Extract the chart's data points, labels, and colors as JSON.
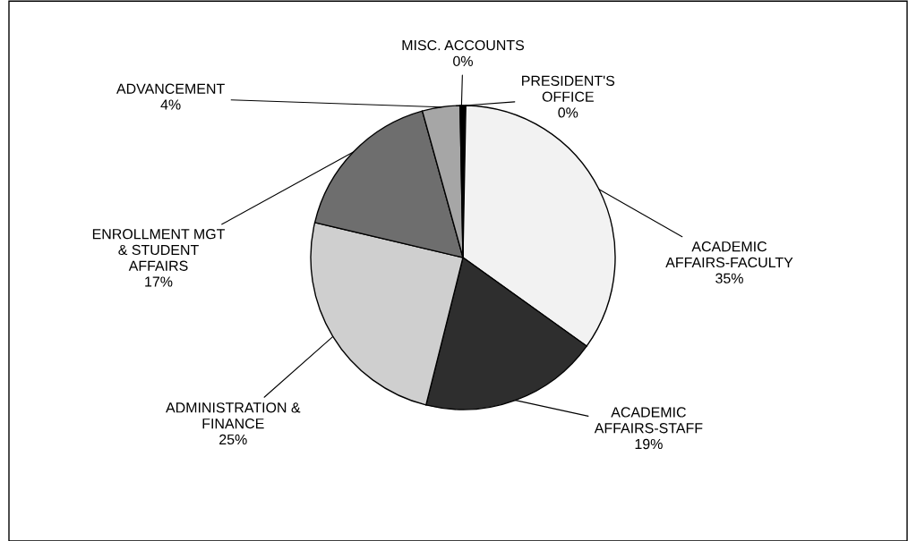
{
  "chart_data": {
    "type": "pie",
    "categories": [
      "PRESIDENT'S OFFICE",
      "ACADEMIC AFFAIRS-FACULTY",
      "ACADEMIC AFFAIRS-STAFF",
      "ADMINISTRATION & FINANCE",
      "ENROLLMENT MGT & STUDENT AFFAIRS",
      "ADVANCEMENT",
      "MISC. ACCOUNTS"
    ],
    "values": [
      0.3,
      34.6,
      19,
      24.8,
      17,
      4,
      0.3
    ],
    "value_labels": [
      "0%",
      "35%",
      "19%",
      "25%",
      "17%",
      "4%",
      "0%"
    ],
    "colors": [
      "#000000",
      "#f2f2f2",
      "#2e2e2e",
      "#cfcfcf",
      "#6e6e6e",
      "#a6a6a6",
      "#000000"
    ],
    "legend": false
  }
}
